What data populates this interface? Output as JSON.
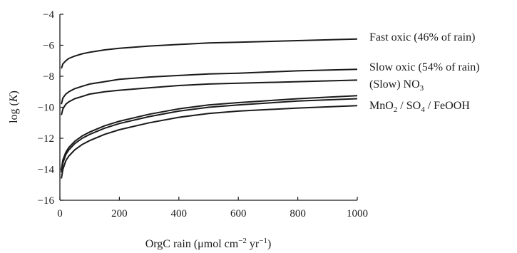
{
  "chart_data": {
    "type": "line",
    "title": "",
    "xlabel": {
      "main": "OrgC rain (μmol cm",
      "exp1": "−2",
      "mid": " yr",
      "exp2": "−1",
      "end": ")"
    },
    "ylabel": {
      "pre": "log (",
      "italic": "K",
      "post": ")"
    },
    "xlim": [
      0,
      1000
    ],
    "ylim": [
      -16,
      -4
    ],
    "xticks": [
      0,
      200,
      400,
      600,
      800,
      1000
    ],
    "yticks": [
      -16,
      -14,
      -12,
      -10,
      -8,
      -6,
      -4
    ],
    "grid": false,
    "series": [
      {
        "name": "Fast oxic (46% of rain)",
        "x": [
          5,
          10,
          20,
          30,
          50,
          75,
          100,
          150,
          200,
          300,
          400,
          500,
          600,
          800,
          1000
        ],
        "y": [
          -7.5,
          -7.2,
          -7.0,
          -6.85,
          -6.7,
          -6.55,
          -6.45,
          -6.3,
          -6.2,
          -6.05,
          -5.95,
          -5.85,
          -5.8,
          -5.7,
          -5.6
        ]
      },
      {
        "name": "Slow oxic (54% of rain)",
        "x": [
          5,
          10,
          20,
          30,
          50,
          75,
          100,
          150,
          200,
          300,
          400,
          500,
          600,
          800,
          1000
        ],
        "y": [
          -9.8,
          -9.4,
          -9.15,
          -9.0,
          -8.8,
          -8.65,
          -8.5,
          -8.35,
          -8.2,
          -8.05,
          -7.95,
          -7.85,
          -7.8,
          -7.65,
          -7.55
        ]
      },
      {
        "name": "(Slow) NO3",
        "x": [
          5,
          10,
          20,
          30,
          50,
          75,
          100,
          150,
          200,
          300,
          400,
          500,
          600,
          800,
          1000
        ],
        "y": [
          -10.5,
          -10.1,
          -9.8,
          -9.65,
          -9.45,
          -9.3,
          -9.15,
          -9.0,
          -8.9,
          -8.75,
          -8.6,
          -8.5,
          -8.45,
          -8.35,
          -8.25
        ]
      },
      {
        "name": "MnO2",
        "x": [
          5,
          10,
          20,
          30,
          50,
          75,
          100,
          150,
          200,
          300,
          400,
          500,
          600,
          800,
          1000
        ],
        "y": [
          -14.0,
          -13.4,
          -12.9,
          -12.6,
          -12.2,
          -11.85,
          -11.6,
          -11.2,
          -10.9,
          -10.45,
          -10.1,
          -9.85,
          -9.7,
          -9.45,
          -9.25
        ]
      },
      {
        "name": "SO4",
        "x": [
          5,
          10,
          20,
          30,
          50,
          75,
          100,
          150,
          200,
          300,
          400,
          500,
          600,
          800,
          1000
        ],
        "y": [
          -14.2,
          -13.6,
          -13.05,
          -12.75,
          -12.35,
          -12.0,
          -11.75,
          -11.35,
          -11.05,
          -10.6,
          -10.25,
          -10.0,
          -9.85,
          -9.6,
          -9.45
        ]
      },
      {
        "name": "FeOOH",
        "x": [
          5,
          10,
          20,
          30,
          50,
          75,
          100,
          150,
          200,
          300,
          400,
          500,
          600,
          800,
          1000
        ],
        "y": [
          -14.6,
          -14.0,
          -13.45,
          -13.15,
          -12.75,
          -12.4,
          -12.15,
          -11.75,
          -11.45,
          -11.0,
          -10.65,
          -10.4,
          -10.25,
          -10.05,
          -9.9
        ]
      }
    ],
    "labels": {
      "fast_oxic": "Fast oxic (46% of rain)",
      "slow_oxic": "Slow oxic (54% of rain)",
      "no3_pre": "(Slow) NO",
      "no3_sub": "3",
      "mno2": "MnO",
      "mno2_sub": "2",
      "sep1": " / ",
      "so4": "SO",
      "so4_sub": "4",
      "sep2": " / ",
      "feooh": "FeOOH"
    }
  }
}
